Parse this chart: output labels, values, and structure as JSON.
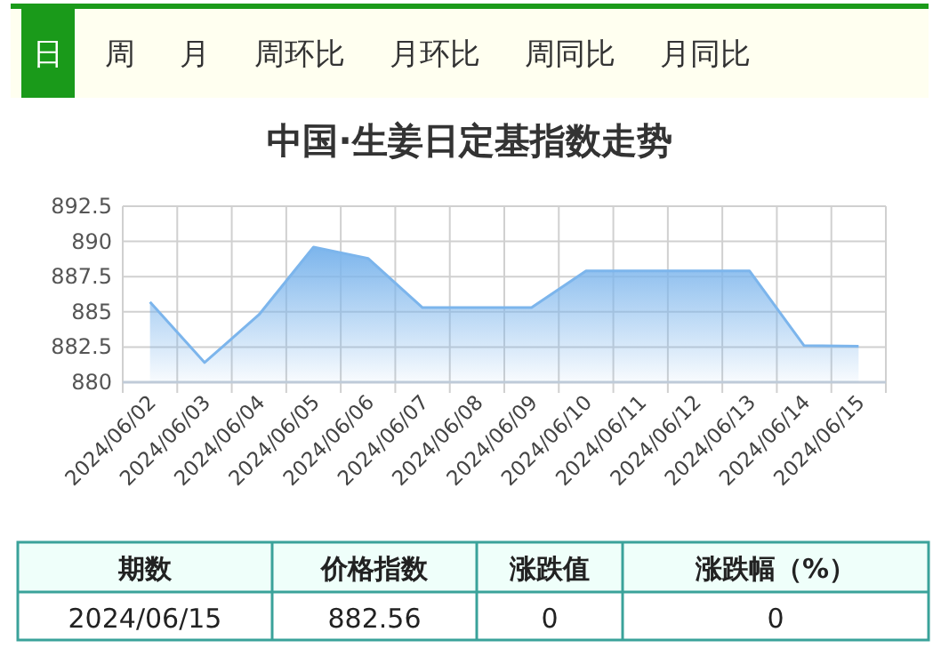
{
  "chart_data": [
    {
      "type": "area",
      "title": "中国·生姜日定基指数走势",
      "annotations": [
        "日",
        "周",
        "月",
        "周环比",
        "月环比",
        "周同比",
        "月同比"
      ],
      "categories": [
        "2024/06/02",
        "2024/06/03",
        "2024/06/04",
        "2024/06/05",
        "2024/06/06",
        "2024/06/07",
        "2024/06/08",
        "2024/06/09",
        "2024/06/10",
        "2024/06/11",
        "2024/06/12",
        "2024/06/13",
        "2024/06/14",
        "2024/06/15"
      ],
      "series": [
        {
          "color": "#7cb5ec",
          "values": [
            885.7,
            881.4,
            884.8,
            889.6,
            888.8,
            885.3,
            885.3,
            885.3,
            887.9,
            887.9,
            887.9,
            887.9,
            882.6,
            882.56
          ]
        }
      ],
      "ylim": [
        880,
        892.5
      ],
      "yticks": [
        880,
        882.5,
        885,
        887.5,
        890,
        892.5
      ],
      "grid": true
    },
    {
      "type": "other",
      "annotations": [
        "期数",
        "价格指数",
        "涨跌值",
        "涨跌幅（%）",
        "2024/06/15",
        "882.56",
        "0",
        "0"
      ]
    }
  ]
}
